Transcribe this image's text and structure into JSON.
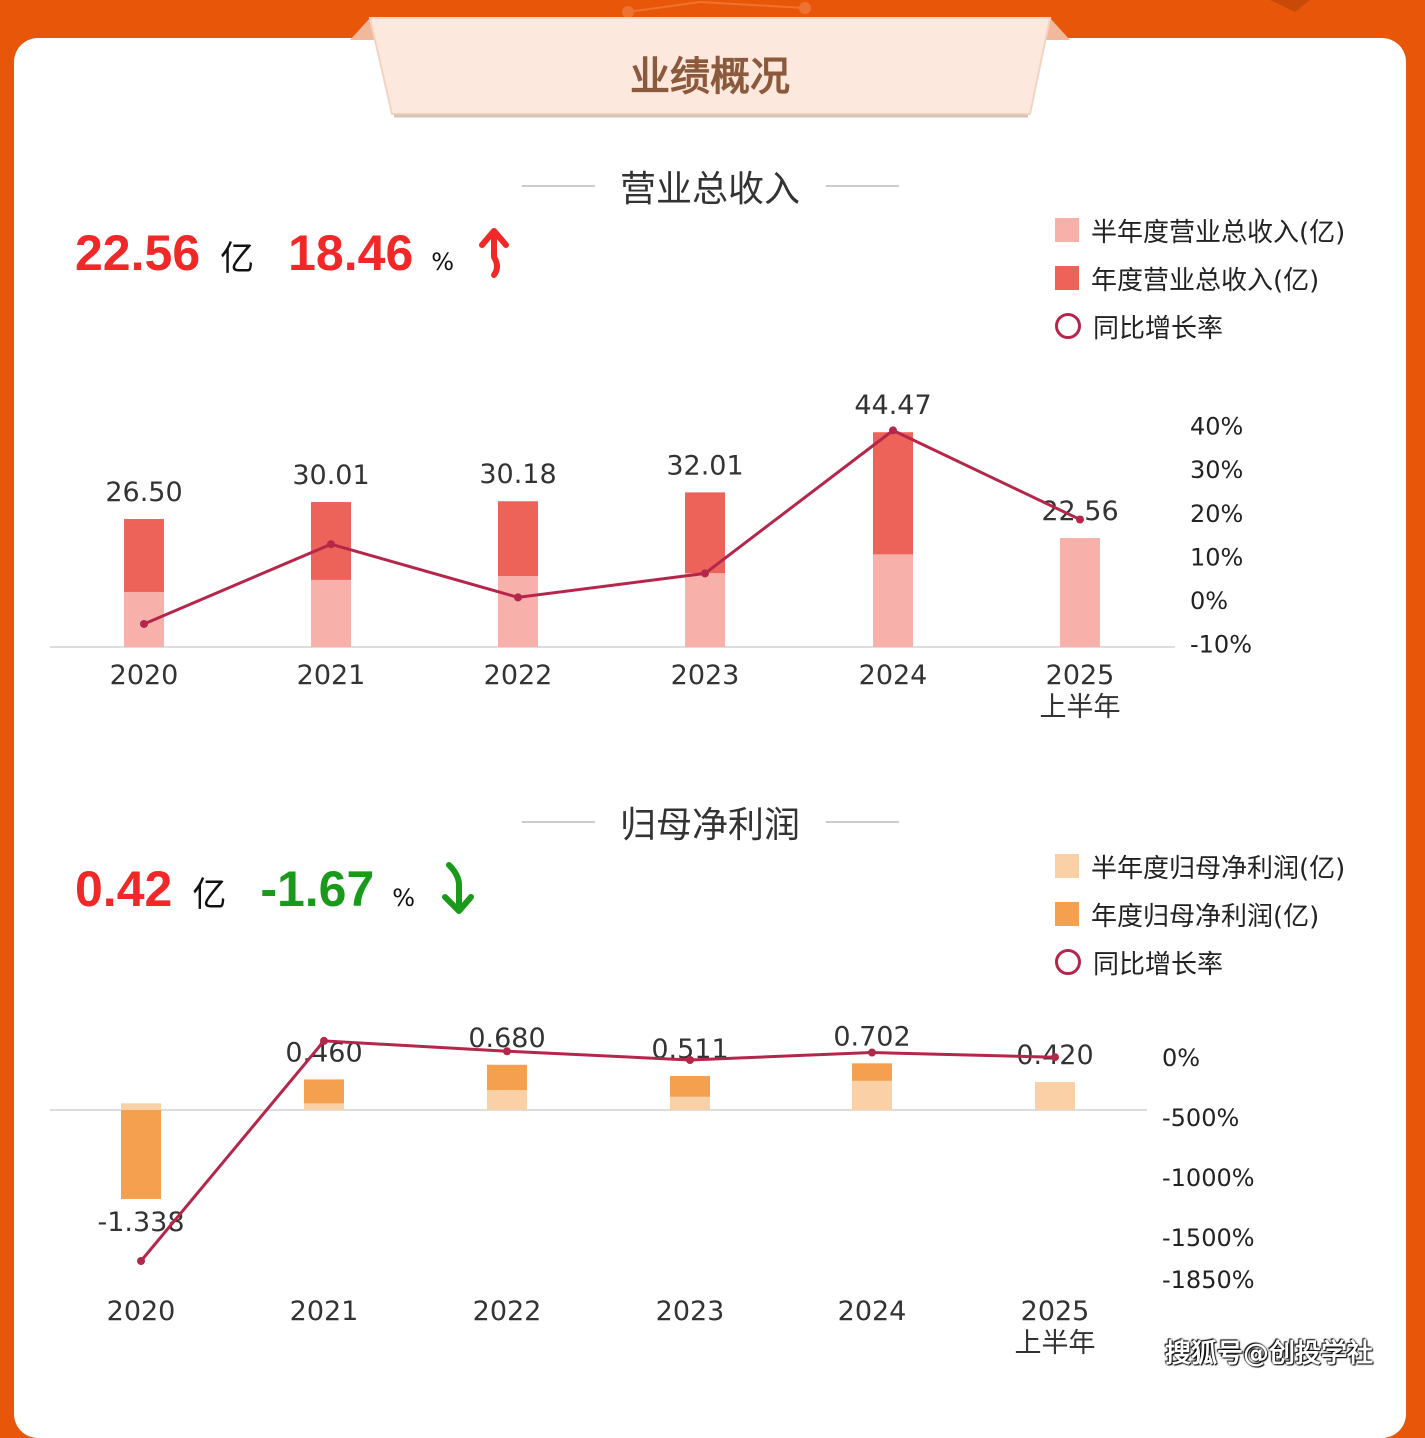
{
  "banner": {
    "title": "业绩概况"
  },
  "revenue": {
    "section_title": "营业总收入",
    "headline_value": "22.56",
    "headline_unit": "亿",
    "headline_growth": "18.46",
    "headline_growth_unit": "%",
    "trend": "up-arrow-icon",
    "value_color": "#f02828",
    "growth_color": "#f02828",
    "legend": [
      "半年度营业总收入(亿)",
      "年度营业总收入(亿)",
      "同比增长率"
    ]
  },
  "profit": {
    "section_title": "归母净利润",
    "headline_value": "0.42",
    "headline_unit": "亿",
    "headline_growth": "-1.67",
    "headline_growth_unit": "%",
    "trend": "down-arrow-icon",
    "value_color": "#f02828",
    "growth_color": "#1a9a1a",
    "legend": [
      "半年度归母净利润(亿)",
      "年度归母净利润(亿)",
      "同比增长率"
    ]
  },
  "watermark": "搜狐号@创投学社",
  "chart_data": [
    {
      "type": "bar",
      "title": "营业总收入",
      "categories": [
        "2020",
        "2021",
        "2022",
        "2023",
        "2024",
        "2025\n上半年"
      ],
      "series": [
        {
          "name": "半年度营业总收入(亿)",
          "values": [
            11.4,
            13.9,
            14.7,
            15.3,
            19.2,
            22.56
          ],
          "color": "#f7b1aa"
        },
        {
          "name": "年度营业总收入(亿)",
          "values": [
            26.5,
            30.01,
            30.18,
            32.01,
            44.47,
            null
          ],
          "color": "#ee6359"
        },
        {
          "name": "同比增长率",
          "type": "line",
          "values": [
            -5.5,
            12.8,
            0.6,
            6.1,
            38.9,
            18.46
          ],
          "color": "#b5274a"
        }
      ],
      "data_labels": [
        "26.50",
        "30.01",
        "30.18",
        "32.01",
        "44.47",
        "22.56"
      ],
      "y2_ticks": [
        "40%",
        "30%",
        "20%",
        "10%",
        "0%",
        "-10%"
      ],
      "y2lim": [
        -10,
        40
      ]
    },
    {
      "type": "bar",
      "title": "归母净利润",
      "categories": [
        "2020",
        "2021",
        "2022",
        "2023",
        "2024",
        "2025\n上半年"
      ],
      "series": [
        {
          "name": "半年度归母净利润(亿)",
          "values": [
            0.1,
            0.1,
            0.3,
            0.2,
            0.44,
            0.42
          ],
          "color": "#fad0a6"
        },
        {
          "name": "年度归母净利润(亿)",
          "values": [
            -1.338,
            0.46,
            0.68,
            0.511,
            0.702,
            null
          ],
          "color": "#f5a04e"
        },
        {
          "name": "同比增长率",
          "type": "line",
          "values": [
            -1700,
            134,
            48,
            -25,
            37,
            -1.67
          ],
          "color": "#b5274a"
        }
      ],
      "data_labels": [
        "-1.338",
        "0.460",
        "0.680",
        "0.511",
        "0.702",
        "0.420"
      ],
      "y2_ticks": [
        "0%",
        "-500%",
        "-1000%",
        "-1500%",
        "-1850%"
      ],
      "y2_tick_values": [
        0,
        -500,
        -1000,
        -1500,
        -1850
      ],
      "y2lim": [
        -1850,
        0
      ]
    }
  ]
}
